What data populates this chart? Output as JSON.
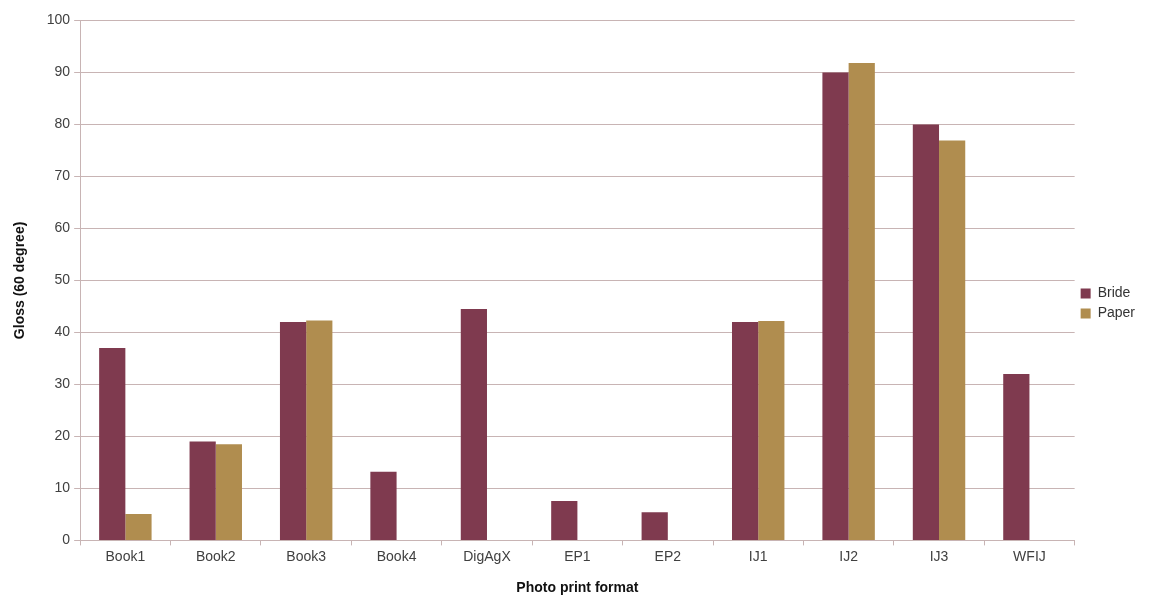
{
  "chart_data": {
    "type": "bar",
    "xlabel": "Photo print format",
    "ylabel": "Gloss (60 degree)",
    "categories": [
      "Book1",
      "Book2",
      "Book3",
      "Book4",
      "DigAgX",
      "EP1",
      "EP2",
      "IJ1",
      "IJ2",
      "IJ3",
      "WFIJ"
    ],
    "series": [
      {
        "name": "Bride",
        "color": "#7f3a4f",
        "values": [
          37,
          19,
          42,
          13.2,
          44.5,
          7.6,
          5.4,
          42,
          90,
          80,
          32
        ]
      },
      {
        "name": "Paper",
        "color": "#b08d4f",
        "values": [
          5.1,
          18.5,
          42.3,
          null,
          null,
          null,
          null,
          42.2,
          91.8,
          76.9,
          null
        ]
      }
    ],
    "ylim": [
      0,
      100
    ],
    "yticks": [
      0,
      10,
      20,
      30,
      40,
      50,
      60,
      70,
      80,
      90,
      100
    ],
    "grid": "y",
    "legend": "right"
  }
}
